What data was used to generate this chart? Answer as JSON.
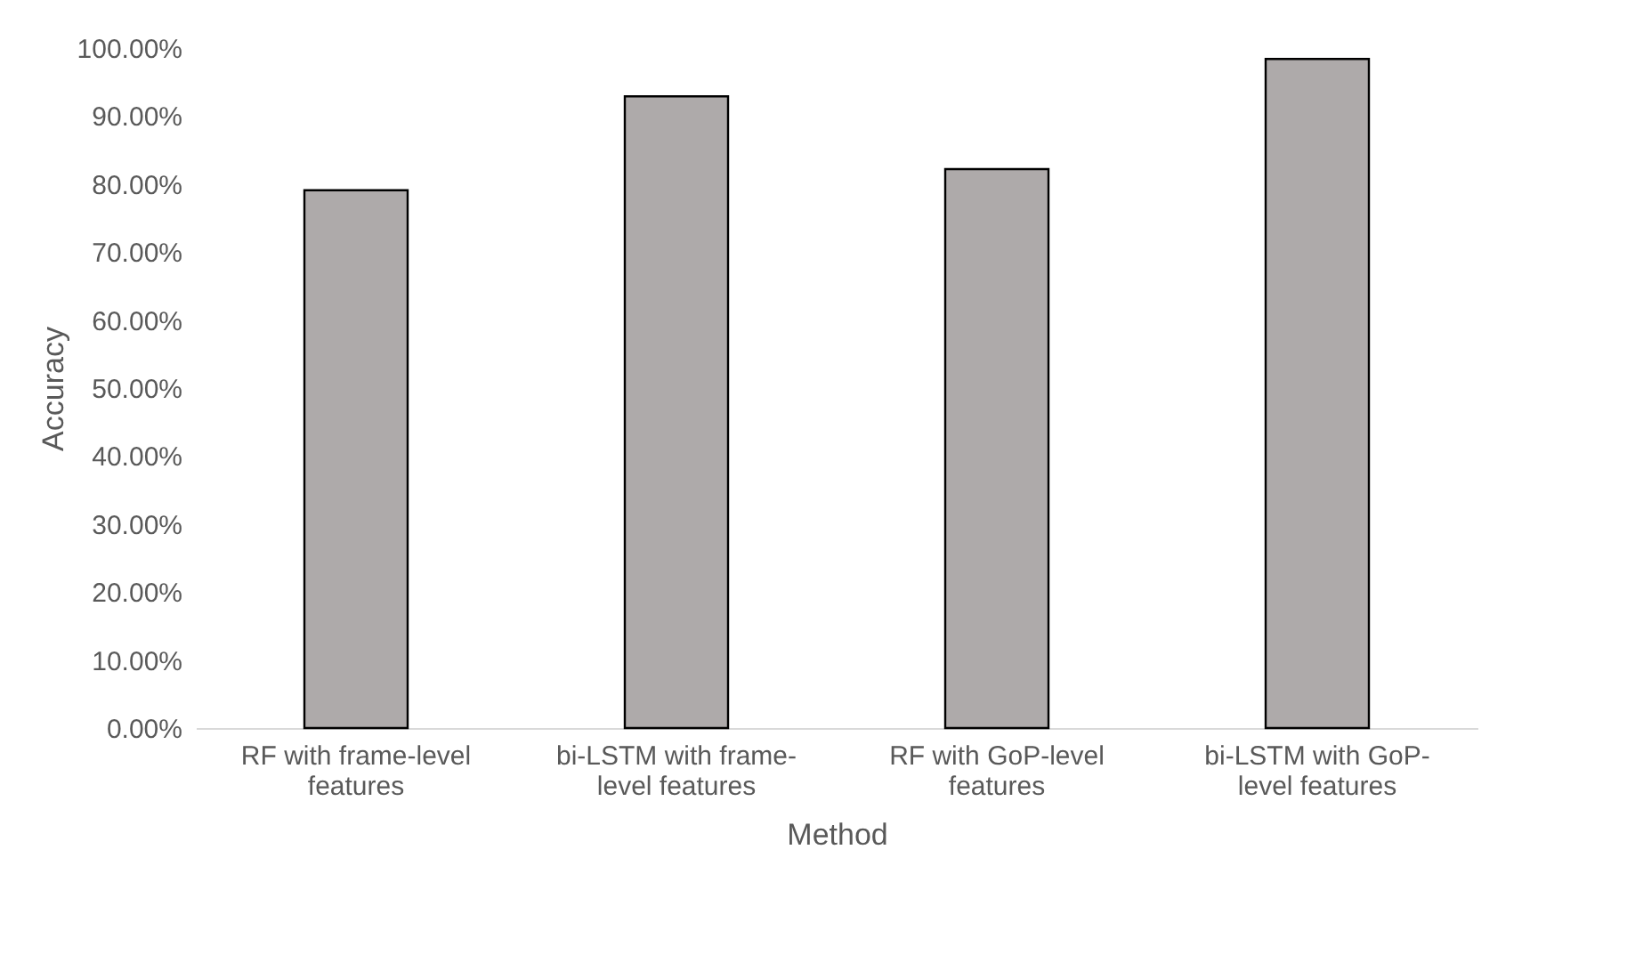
{
  "chart_data": {
    "type": "bar",
    "xlabel": "Method",
    "ylabel": "Accuracy",
    "categories": [
      "RF with frame-level features",
      "bi-LSTM with frame-level features",
      "RF with GoP-level features",
      "bi-LSTM with GoP-level features"
    ],
    "values": [
      79.1,
      92.9,
      82.2,
      98.4
    ],
    "color": "#aeaaaa",
    "ylim": [
      0,
      100
    ],
    "yticks": [
      {
        "value": 0,
        "label": "0.00%"
      },
      {
        "value": 10,
        "label": "10.00%"
      },
      {
        "value": 20,
        "label": "20.00%"
      },
      {
        "value": 30,
        "label": "30.00%"
      },
      {
        "value": 40,
        "label": "40.00%"
      },
      {
        "value": 50,
        "label": "50.00%"
      },
      {
        "value": 60,
        "label": "60.00%"
      },
      {
        "value": 70,
        "label": "70.00%"
      },
      {
        "value": 80,
        "label": "80.00%"
      },
      {
        "value": 90,
        "label": "90.00%"
      },
      {
        "value": 100,
        "label": "100.00%"
      }
    ],
    "grid": false
  }
}
